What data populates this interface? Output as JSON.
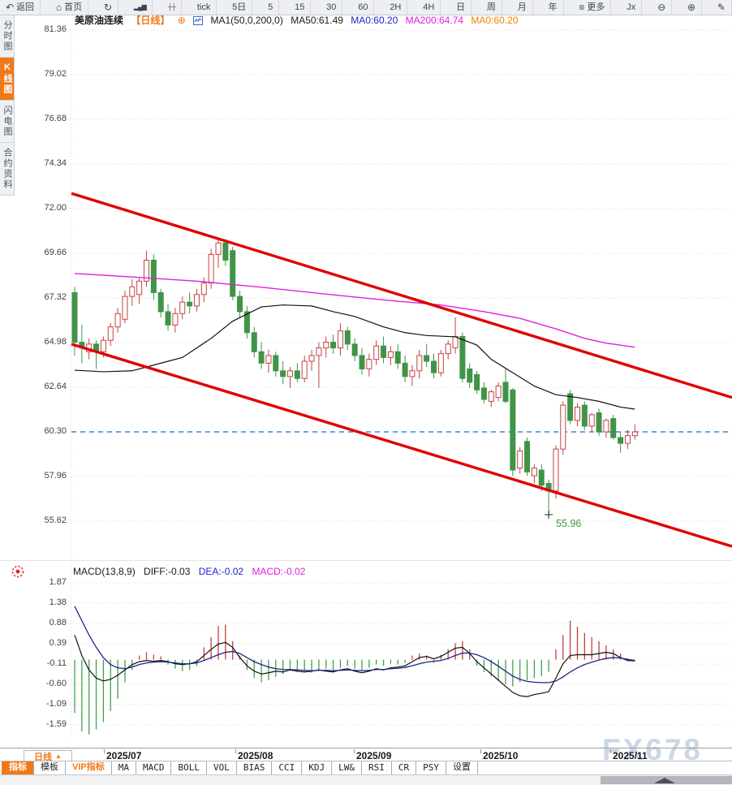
{
  "toolbar": {
    "items": [
      {
        "name": "back",
        "icon": "↶",
        "label": "返回"
      },
      {
        "name": "home",
        "icon": "⌂",
        "label": "首页"
      },
      {
        "name": "refresh",
        "icon": "↻",
        "label": ""
      },
      {
        "name": "indicator-chart",
        "icon": "▂▄▆",
        "label": ""
      },
      {
        "name": "candle-settings",
        "icon": "┼┼",
        "label": ""
      },
      {
        "name": "period-tick",
        "icon": "",
        "label": "tick"
      },
      {
        "name": "period-5d",
        "icon": "",
        "label": "5日"
      },
      {
        "name": "period-5min",
        "icon": "",
        "label": "5"
      },
      {
        "name": "period-15min",
        "icon": "",
        "label": "15"
      },
      {
        "name": "period-30min",
        "icon": "",
        "label": "30"
      },
      {
        "name": "period-60min",
        "icon": "",
        "label": "60"
      },
      {
        "name": "period-2h",
        "icon": "",
        "label": "2H"
      },
      {
        "name": "period-day",
        "icon": "",
        "label": "4H"
      },
      {
        "name": "period-daily",
        "icon": "",
        "label": "日"
      },
      {
        "name": "period-week",
        "icon": "",
        "label": "周"
      },
      {
        "name": "period-month",
        "icon": "",
        "label": "月"
      },
      {
        "name": "period-year",
        "icon": "",
        "label": "年"
      },
      {
        "name": "more-menu",
        "icon": "≡",
        "label": "更多"
      },
      {
        "name": "indicator-fx",
        "icon": "",
        "label": "Jx"
      },
      {
        "name": "zoom-out",
        "icon": "⊖",
        "label": ""
      },
      {
        "name": "zoom-in",
        "icon": "⊕",
        "label": ""
      },
      {
        "name": "draw-tool",
        "icon": "✎",
        "label": ""
      }
    ]
  },
  "sidebar": {
    "items": [
      {
        "name": "time-chart",
        "label": "分时图",
        "active": false
      },
      {
        "name": "kline-chart",
        "label": "K线图",
        "active": true
      },
      {
        "name": "lightning-chart",
        "label": "闪电图",
        "active": false
      },
      {
        "name": "contract-info",
        "label": "合约资料",
        "active": false
      }
    ]
  },
  "chart_header": {
    "symbol": "美原油连续",
    "period_tag": "【日线】",
    "add_icon": "⊕",
    "ma_settings": "MA1(50,0,200,0)",
    "ma50": "MA50:61.49",
    "ma0_blue": "MA0:60.20",
    "ma200": "MA200:64.74",
    "ma0_orange": "MA0:60.20"
  },
  "macd_header": {
    "title": "MACD(13,8,9)",
    "diff": "DIFF:-0.03",
    "dea": "DEA:-0.02",
    "macd": "MACD:-0.02"
  },
  "bottom_bar": {
    "period_button": {
      "label": "日线",
      "arrow": "▲"
    },
    "tabs": [
      {
        "label": "指标",
        "state": "active",
        "cn": true
      },
      {
        "label": "模板",
        "state": "normal",
        "cn": true
      },
      {
        "label": "VIP指标",
        "state": "vip",
        "cn": true
      },
      {
        "label": "MA",
        "state": "normal",
        "cn": false
      },
      {
        "label": "MACD",
        "state": "normal",
        "cn": false
      },
      {
        "label": "BOLL",
        "state": "normal",
        "cn": false
      },
      {
        "label": "VOL",
        "state": "normal",
        "cn": false
      },
      {
        "label": "BIAS",
        "state": "normal",
        "cn": false
      },
      {
        "label": "CCI",
        "state": "normal",
        "cn": false
      },
      {
        "label": "KDJ",
        "state": "normal",
        "cn": false
      },
      {
        "label": "LW&",
        "state": "normal",
        "cn": false
      },
      {
        "label": "RSI",
        "state": "normal",
        "cn": false
      },
      {
        "label": "CR",
        "state": "normal",
        "cn": false
      },
      {
        "label": "PSY",
        "state": "normal",
        "cn": false
      },
      {
        "label": "设置",
        "state": "normal",
        "cn": true
      }
    ]
  },
  "watermark": "FX678",
  "colors": {
    "up_candle": "#c84040",
    "down_candle": "#3f9447",
    "trend_line": "#e00000",
    "ma50_line": "#111111",
    "ma200_line": "#e020e0",
    "diff_line": "#111111",
    "dea_line": "#222288",
    "hist_pos": "#c04040",
    "hist_neg": "#44a04a",
    "current_price_line": "#2e8be6",
    "accent_orange": "#f07818",
    "low_label_green": "#3a9a3a"
  },
  "chart_data": {
    "type": "candlestick",
    "symbol": "美原油连续",
    "period": "日线",
    "price_axis_ticks": [
      81.36,
      79.02,
      76.68,
      74.34,
      72.0,
      69.66,
      67.32,
      64.98,
      62.64,
      60.3,
      57.96,
      55.62
    ],
    "x_axis_dates": [
      "2025/07",
      "2025/08",
      "2025/09",
      "2025/10",
      "2025/11"
    ],
    "current_price_line": 60.3,
    "low_annotation": {
      "value": 55.96,
      "candle_index": 66
    },
    "candle_format": [
      "open",
      "high",
      "low",
      "close"
    ],
    "candles": [
      [
        67.6,
        67.9,
        64.3,
        65.0
      ],
      [
        65.0,
        65.9,
        63.9,
        64.7
      ],
      [
        64.5,
        65.2,
        64.1,
        64.9
      ],
      [
        64.9,
        65.1,
        63.6,
        64.5
      ],
      [
        64.5,
        65.3,
        64.2,
        65.1
      ],
      [
        65.1,
        66.0,
        64.8,
        65.8
      ],
      [
        65.8,
        66.8,
        65.5,
        66.5
      ],
      [
        66.2,
        67.7,
        66.0,
        67.4
      ],
      [
        67.4,
        68.3,
        66.9,
        67.9
      ],
      [
        67.5,
        68.4,
        67.0,
        68.2
      ],
      [
        68.2,
        69.8,
        67.9,
        69.3
      ],
      [
        69.3,
        69.6,
        67.2,
        67.6
      ],
      [
        67.6,
        67.8,
        66.3,
        66.6
      ],
      [
        66.6,
        67.0,
        65.6,
        65.9
      ],
      [
        65.9,
        66.8,
        65.5,
        66.5
      ],
      [
        66.5,
        67.4,
        66.2,
        67.1
      ],
      [
        67.1,
        67.6,
        66.5,
        66.9
      ],
      [
        66.9,
        67.8,
        66.6,
        67.5
      ],
      [
        67.5,
        68.4,
        67.1,
        68.1
      ],
      [
        68.1,
        69.9,
        67.8,
        69.6
      ],
      [
        69.6,
        70.5,
        68.9,
        70.2
      ],
      [
        70.2,
        70.4,
        69.0,
        69.3
      ],
      [
        69.8,
        70.0,
        67.2,
        67.4
      ],
      [
        67.4,
        67.7,
        66.3,
        66.6
      ],
      [
        66.6,
        66.9,
        65.2,
        65.5
      ],
      [
        65.5,
        65.8,
        64.2,
        64.5
      ],
      [
        64.5,
        65.0,
        63.6,
        63.9
      ],
      [
        63.9,
        64.6,
        63.4,
        64.3
      ],
      [
        64.3,
        64.5,
        63.2,
        63.5
      ],
      [
        63.5,
        64.0,
        62.8,
        63.2
      ],
      [
        63.2,
        63.7,
        62.6,
        63.5
      ],
      [
        63.5,
        63.9,
        62.9,
        63.1
      ],
      [
        63.1,
        64.3,
        62.9,
        64.0
      ],
      [
        64.0,
        64.6,
        63.5,
        64.3
      ],
      [
        64.3,
        65.0,
        62.6,
        64.7
      ],
      [
        64.7,
        65.3,
        64.2,
        65.0
      ],
      [
        65.0,
        65.4,
        64.4,
        64.7
      ],
      [
        64.7,
        66.0,
        64.3,
        65.6
      ],
      [
        65.6,
        65.8,
        64.6,
        64.9
      ],
      [
        64.9,
        65.2,
        64.0,
        64.3
      ],
      [
        64.3,
        64.7,
        63.3,
        63.6
      ],
      [
        63.6,
        64.4,
        63.2,
        64.1
      ],
      [
        64.1,
        65.1,
        63.8,
        64.8
      ],
      [
        64.8,
        65.3,
        63.9,
        64.2
      ],
      [
        64.2,
        64.8,
        63.8,
        64.5
      ],
      [
        64.5,
        64.9,
        63.6,
        63.9
      ],
      [
        63.9,
        64.3,
        62.9,
        63.2
      ],
      [
        63.2,
        63.8,
        62.7,
        63.5
      ],
      [
        63.5,
        64.6,
        63.1,
        64.3
      ],
      [
        64.3,
        64.9,
        63.7,
        64.0
      ],
      [
        64.0,
        64.4,
        63.1,
        63.4
      ],
      [
        63.4,
        64.6,
        63.2,
        64.4
      ],
      [
        64.4,
        65.1,
        64.1,
        64.9
      ],
      [
        64.7,
        66.3,
        64.4,
        65.3
      ],
      [
        65.3,
        65.5,
        62.9,
        63.1
      ],
      [
        63.6,
        63.9,
        62.6,
        62.9
      ],
      [
        63.3,
        63.5,
        62.3,
        62.5
      ],
      [
        62.6,
        62.9,
        61.8,
        62.0
      ],
      [
        61.9,
        62.5,
        61.6,
        62.4
      ],
      [
        62.1,
        62.9,
        61.9,
        62.7
      ],
      [
        62.9,
        63.6,
        61.8,
        61.9
      ],
      [
        62.5,
        62.6,
        58.0,
        58.3
      ],
      [
        58.4,
        59.5,
        58.1,
        59.3
      ],
      [
        59.8,
        60.0,
        58.0,
        58.2
      ],
      [
        58.0,
        58.6,
        57.6,
        58.4
      ],
      [
        58.3,
        58.6,
        57.2,
        57.5
      ],
      [
        57.6,
        57.8,
        55.96,
        57.2
      ],
      [
        57.2,
        59.6,
        56.8,
        59.4
      ],
      [
        59.4,
        61.9,
        59.1,
        61.7
      ],
      [
        62.3,
        62.5,
        60.7,
        60.9
      ],
      [
        60.9,
        61.8,
        60.6,
        61.6
      ],
      [
        61.7,
        61.9,
        60.4,
        60.6
      ],
      [
        60.6,
        61.3,
        60.3,
        61.2
      ],
      [
        61.3,
        61.5,
        60.1,
        60.3
      ],
      [
        60.3,
        61.0,
        60.0,
        60.9
      ],
      [
        61.0,
        61.2,
        59.9,
        60.0
      ],
      [
        60.0,
        60.3,
        59.2,
        59.7
      ],
      [
        59.7,
        60.4,
        59.4,
        60.1
      ],
      [
        60.1,
        60.7,
        59.9,
        60.3
      ]
    ],
    "overlays": {
      "ma50_last": 61.49,
      "ma200_last": 64.74,
      "ma50_points": [
        [
          0,
          63.53
        ],
        [
          4,
          63.45
        ],
        [
          8,
          63.5
        ],
        [
          12,
          63.9
        ],
        [
          15,
          64.2
        ],
        [
          19,
          65.2
        ],
        [
          22,
          66.1
        ],
        [
          26,
          66.85
        ],
        [
          29,
          66.95
        ],
        [
          33,
          66.9
        ],
        [
          36,
          66.6
        ],
        [
          39,
          66.35
        ],
        [
          43,
          65.8
        ],
        [
          46,
          65.5
        ],
        [
          49,
          65.35
        ],
        [
          53,
          65.28
        ],
        [
          56,
          64.85
        ],
        [
          58,
          64.1
        ],
        [
          61,
          63.4
        ],
        [
          64,
          62.7
        ],
        [
          67,
          62.25
        ],
        [
          70,
          62.1
        ],
        [
          73,
          61.9
        ],
        [
          76,
          61.6
        ],
        [
          78,
          61.49
        ]
      ],
      "ma200_points": [
        [
          0,
          68.6
        ],
        [
          8,
          68.42
        ],
        [
          17,
          68.2
        ],
        [
          26,
          67.88
        ],
        [
          35,
          67.52
        ],
        [
          44,
          67.18
        ],
        [
          51,
          66.95
        ],
        [
          57,
          66.6
        ],
        [
          62,
          66.25
        ],
        [
          67,
          65.7
        ],
        [
          71,
          65.2
        ],
        [
          74,
          64.95
        ],
        [
          78,
          64.74
        ]
      ]
    },
    "trend_channel": {
      "upper": {
        "start_price": 72.8,
        "end_price": 62.1
      },
      "lower": {
        "start_price": 64.9,
        "end_price": 54.3
      }
    },
    "macd": {
      "params": "13,8,9",
      "diff_last": -0.03,
      "dea_last": -0.02,
      "macd_last": -0.02,
      "axis_ticks": [
        1.87,
        1.38,
        0.88,
        0.39,
        -0.11,
        -0.6,
        -1.09,
        -1.59
      ],
      "hist": [
        -1.3,
        -1.75,
        -1.82,
        -1.7,
        -1.52,
        -1.25,
        -0.95,
        -0.55,
        -0.25,
        0.1,
        0.18,
        0.12,
        0.08,
        -0.12,
        -0.22,
        -0.28,
        -0.25,
        -0.15,
        0.3,
        0.55,
        0.82,
        0.85,
        0.45,
        0.1,
        -0.25,
        -0.45,
        -0.55,
        -0.5,
        -0.42,
        -0.35,
        -0.25,
        -0.3,
        -0.28,
        -0.32,
        -0.25,
        -0.22,
        -0.28,
        -0.2,
        -0.15,
        -0.22,
        -0.28,
        -0.2,
        -0.12,
        -0.15,
        -0.1,
        -0.12,
        -0.08,
        0.1,
        0.15,
        0.1,
        -0.08,
        0.12,
        0.25,
        0.4,
        0.45,
        0.25,
        -0.15,
        -0.3,
        -0.4,
        -0.5,
        -0.6,
        -0.65,
        -0.55,
        -0.5,
        -0.45,
        -0.4,
        -0.3,
        0.25,
        0.6,
        0.95,
        0.8,
        0.65,
        0.55,
        0.45,
        0.35,
        0.25,
        0.15,
        -0.04,
        -0.02
      ],
      "diff": [
        0.6,
        0.1,
        -0.25,
        -0.45,
        -0.52,
        -0.48,
        -0.38,
        -0.25,
        -0.12,
        -0.05,
        -0.02,
        -0.04,
        -0.02,
        -0.05,
        -0.1,
        -0.12,
        -0.1,
        -0.05,
        0.1,
        0.25,
        0.38,
        0.42,
        0.3,
        0.05,
        -0.15,
        -0.28,
        -0.35,
        -0.32,
        -0.28,
        -0.3,
        -0.25,
        -0.28,
        -0.3,
        -0.28,
        -0.25,
        -0.28,
        -0.3,
        -0.25,
        -0.22,
        -0.28,
        -0.32,
        -0.28,
        -0.22,
        -0.25,
        -0.2,
        -0.18,
        -0.15,
        -0.05,
        0.05,
        0.08,
        0.02,
        0.08,
        0.18,
        0.28,
        0.3,
        0.15,
        -0.05,
        -0.2,
        -0.35,
        -0.5,
        -0.65,
        -0.8,
        -0.88,
        -0.9,
        -0.85,
        -0.82,
        -0.78,
        -0.45,
        -0.1,
        0.1,
        0.12,
        0.12,
        0.12,
        0.15,
        0.18,
        0.15,
        0.05,
        -0.02,
        -0.03
      ],
      "dea": [
        1.3,
        0.95,
        0.6,
        0.3,
        0.05,
        -0.12,
        -0.2,
        -0.22,
        -0.18,
        -0.12,
        -0.08,
        -0.06,
        -0.05,
        -0.06,
        -0.08,
        -0.1,
        -0.1,
        -0.08,
        -0.02,
        0.05,
        0.12,
        0.18,
        0.2,
        0.15,
        0.05,
        -0.05,
        -0.12,
        -0.18,
        -0.22,
        -0.24,
        -0.24,
        -0.25,
        -0.26,
        -0.27,
        -0.26,
        -0.26,
        -0.27,
        -0.26,
        -0.25,
        -0.26,
        -0.27,
        -0.26,
        -0.24,
        -0.24,
        -0.22,
        -0.21,
        -0.19,
        -0.15,
        -0.1,
        -0.06,
        -0.04,
        -0.02,
        0.03,
        0.1,
        0.16,
        0.16,
        0.12,
        0.05,
        -0.05,
        -0.16,
        -0.28,
        -0.4,
        -0.48,
        -0.53,
        -0.55,
        -0.56,
        -0.56,
        -0.52,
        -0.42,
        -0.3,
        -0.2,
        -0.12,
        -0.06,
        -0.01,
        0.03,
        0.05,
        0.04,
        0.01,
        -0.02
      ]
    }
  }
}
